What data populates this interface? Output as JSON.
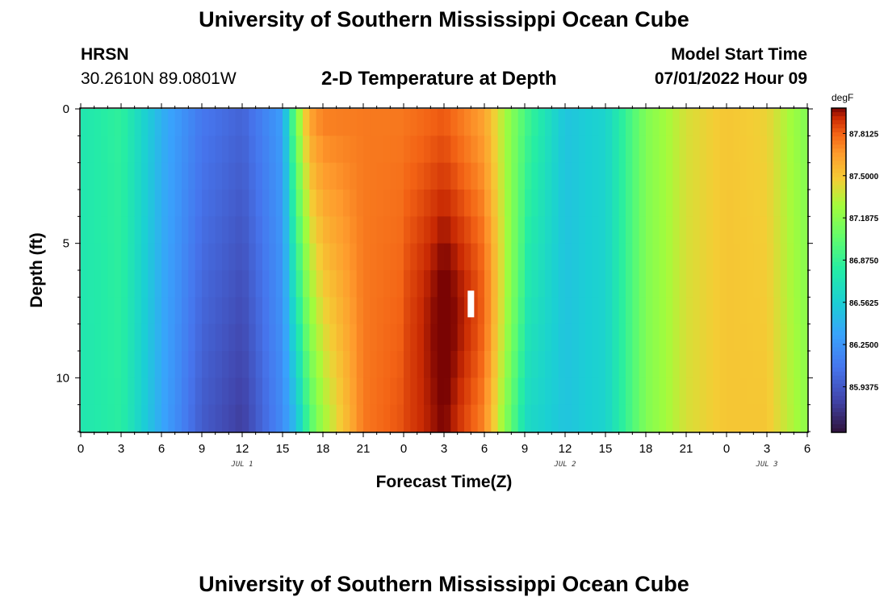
{
  "header": {
    "title": "University of Southern Mississippi Ocean Cube",
    "station": "HRSN",
    "coords": "30.2610N  89.0801W",
    "plot_title": "2-D Temperature at Depth",
    "start_label": "Model Start Time",
    "start_value": "07/01/2022 Hour 09"
  },
  "footer": {
    "title": "University of Southern Mississippi Ocean Cube"
  },
  "chart_data": {
    "type": "heatmap",
    "title": "2-D Temperature at Depth",
    "xlabel": "Forecast Time(Z)",
    "ylabel": "Depth (ft)",
    "x_tick_labels": [
      "0",
      "3",
      "6",
      "9",
      "12",
      "15",
      "18",
      "21",
      "0",
      "3",
      "6",
      "9",
      "12",
      "15",
      "18",
      "21",
      "0",
      "3",
      "6"
    ],
    "x_tick_hours": [
      0,
      3,
      6,
      9,
      12,
      15,
      18,
      21,
      24,
      27,
      30,
      33,
      36,
      39,
      42,
      45,
      48,
      51,
      54
    ],
    "x_range_hours": [
      0,
      54
    ],
    "date_labels": [
      {
        "text": "JUL 1",
        "hour": 12
      },
      {
        "text": "JUL 2",
        "hour": 36
      },
      {
        "text": "JUL 3",
        "hour": 51
      }
    ],
    "y_ticks": [
      0,
      5,
      10
    ],
    "y_range": [
      0,
      12
    ],
    "y_reversed": true,
    "colorbar": {
      "unit": "degF",
      "min": 85.6,
      "max": 88.0,
      "labels": [
        "87.8125",
        "87.5000",
        "87.1875",
        "86.8750",
        "86.5625",
        "86.2500",
        "85.9375"
      ],
      "values": [
        87.8125,
        87.5,
        87.1875,
        86.875,
        86.5625,
        86.25,
        85.9375
      ]
    },
    "colormap": "turbo",
    "time_step_hours": 0.5,
    "depth_levels": 12,
    "surface_profile_hours": [
      0,
      3,
      6,
      9,
      12,
      15,
      16,
      17,
      18,
      21,
      24,
      27,
      30,
      33,
      36,
      39,
      42,
      45,
      48,
      51,
      54
    ],
    "surface_profile_degF": [
      86.75,
      86.85,
      86.4,
      86.1,
      86.0,
      86.3,
      87.15,
      87.65,
      87.75,
      87.75,
      87.75,
      87.8,
      87.6,
      86.95,
      86.5,
      86.6,
      87.15,
      87.4,
      87.5,
      87.45,
      87.15
    ],
    "depth_anomaly_profile_hours": [
      0,
      6,
      9,
      12,
      15,
      16,
      17,
      18,
      21,
      24,
      27,
      30,
      33,
      36,
      39,
      42,
      45,
      48,
      51,
      54
    ],
    "depth_anomaly_profile_degF": [
      0,
      -0.05,
      -0.15,
      -0.2,
      -0.1,
      -0.7,
      -0.7,
      -0.5,
      0.0,
      0.1,
      0.15,
      0.05,
      -0.3,
      0,
      0,
      0,
      0,
      0,
      0.05,
      0.05
    ],
    "marker": {
      "hour": 29,
      "depth_ft": 7
    }
  }
}
